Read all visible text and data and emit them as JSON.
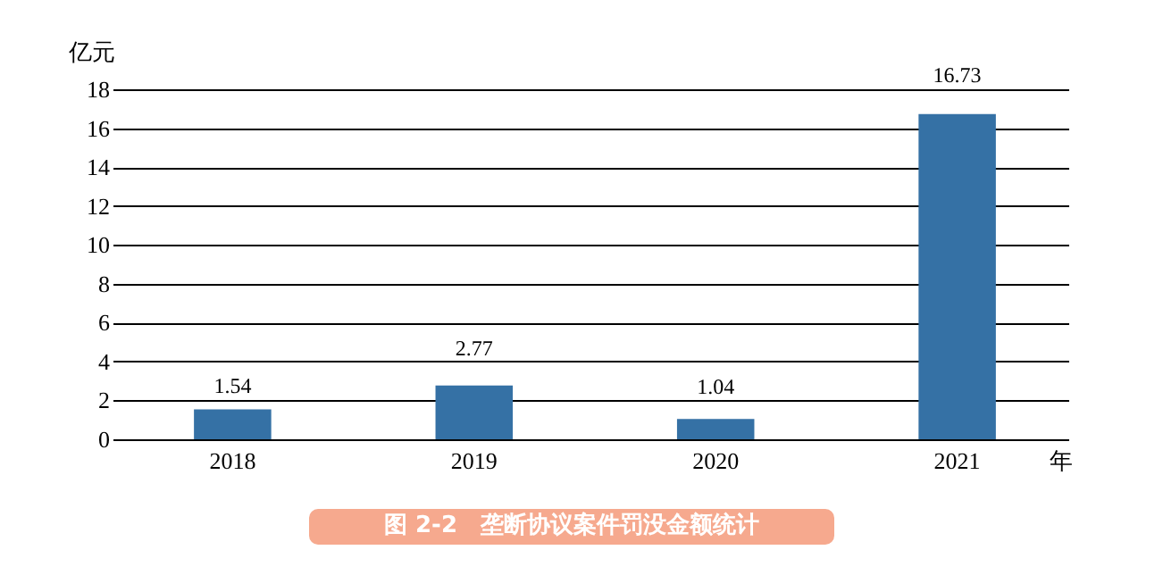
{
  "chart_data": {
    "type": "bar",
    "title": "图 2-2　垄断协议案件罚没金额统计",
    "xlabel": "年",
    "ylabel": "亿元",
    "categories": [
      "2018",
      "2019",
      "2020",
      "2021"
    ],
    "values": [
      1.54,
      2.77,
      1.04,
      16.73
    ],
    "color": "#3571a5",
    "ylim": [
      0,
      18
    ],
    "yticks": [
      0,
      2,
      4,
      6,
      8,
      10,
      12,
      14,
      16,
      18
    ],
    "grid": "y",
    "data_labels": true
  }
}
